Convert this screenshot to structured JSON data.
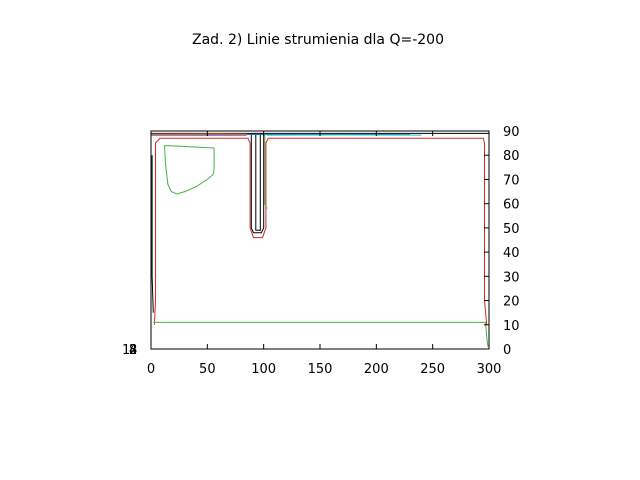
{
  "chart_data": {
    "type": "line",
    "title": "Zad. 2) Linie strumienia dla Q=-200",
    "xlabel": "",
    "ylabel": "",
    "xlim": [
      0,
      300
    ],
    "ylim": [
      0,
      90
    ],
    "x_ticks": [
      "0",
      "50",
      "100",
      "150",
      "200",
      "250",
      "300"
    ],
    "y_ticks": [
      "0",
      "10",
      "20",
      "30",
      "40",
      "50",
      "60",
      "70",
      "80",
      "90"
    ],
    "y_axis_side": "right",
    "grid": false,
    "left_overlapped_labels": [
      "1",
      "2",
      "4",
      "8"
    ],
    "series": [
      {
        "color": "#d62728",
        "x": [
          3,
          4,
          4,
          8,
          86,
          88,
          88,
          91,
          99,
          102,
          102,
          104,
          295,
          296,
          296,
          298
        ],
        "y": [
          10,
          20,
          85,
          87,
          87,
          85,
          50,
          46,
          46,
          50,
          85,
          87,
          87,
          85,
          20,
          10
        ]
      },
      {
        "color": "#4daf4a",
        "x": [
          2,
          297,
          298,
          299
        ],
        "y": [
          11,
          11,
          5,
          1
        ]
      },
      {
        "color": "#4daf4a",
        "x": [
          12,
          13,
          15,
          18,
          23,
          30,
          40,
          50,
          55,
          56,
          56,
          12
        ],
        "y": [
          84,
          76,
          68,
          65,
          64,
          65,
          67,
          70,
          72,
          74,
          83,
          84
        ]
      },
      {
        "color": "#000000",
        "x": [
          89,
          89,
          91,
          98,
          100,
          100
        ],
        "y": [
          89,
          50,
          48,
          48,
          50,
          89
        ]
      },
      {
        "color": "#000000",
        "x": [
          93,
          93,
          97,
          97
        ],
        "y": [
          89,
          49,
          49,
          89
        ]
      },
      {
        "color": "#000000",
        "x": [
          0,
          88,
          101,
          300
        ],
        "y": [
          89,
          89,
          89,
          89
        ]
      },
      {
        "color": "#1f77b4",
        "x": [
          0,
          120,
          180,
          230
        ],
        "y": [
          88.5,
          88.6,
          88.6,
          88.5
        ]
      },
      {
        "color": "#9467bd",
        "x": [
          0,
          85
        ],
        "y": [
          88.2,
          88.2
        ]
      },
      {
        "color": "#ff7f0e",
        "x": [
          0,
          60,
          85
        ],
        "y": [
          88.7,
          88.8,
          88.7
        ]
      },
      {
        "color": "#17becf",
        "x": [
          103,
          170,
          240
        ],
        "y": [
          88.3,
          88.4,
          88.3
        ]
      },
      {
        "color": "#4daf4a",
        "x": [
          101,
          101,
          103
        ],
        "y": [
          89,
          60,
          58
        ]
      },
      {
        "color": "#000000",
        "x": [
          1,
          1,
          2
        ],
        "y": [
          80,
          30,
          15
        ]
      }
    ]
  }
}
